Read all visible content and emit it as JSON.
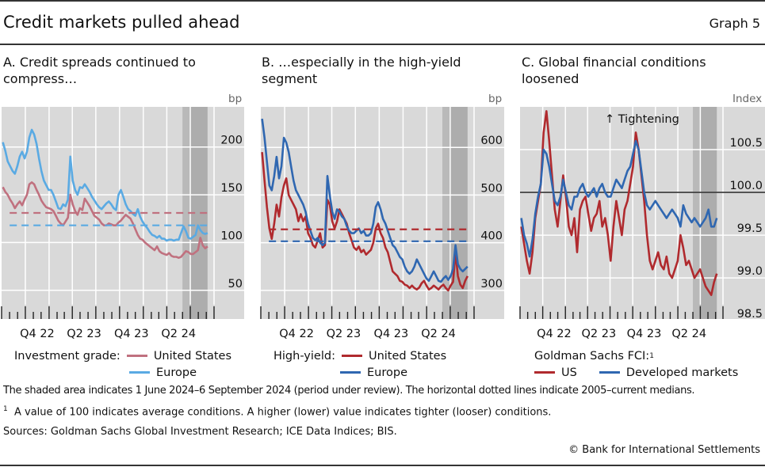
{
  "header": {
    "title": "Credit markets pulled ahead",
    "graph_number": "Graph 5"
  },
  "colors": {
    "ig_us": "#c0717f",
    "ig_europe": "#5aaae3",
    "hy_us": "#b02a2e",
    "hy_europe": "#2f67b1",
    "plot_bg": "#d9d9d9",
    "shade_light": "#c2c2c2",
    "shade_dark": "#adadad",
    "grid": "#ffffff"
  },
  "chart_data": [
    {
      "id": "A",
      "type": "line",
      "title": "A. Credit spreads continued to compress…",
      "ylabel": "bp",
      "ylim": [
        20,
        242
      ],
      "yticks": [
        50,
        100,
        150,
        200
      ],
      "xlim": [
        "2022-07-01",
        "2024-10-31"
      ],
      "xtick_labels": [
        "Q4 22",
        "Q2 23",
        "Q4 23",
        "Q2 24"
      ],
      "shaded_period": [
        "2024-06-01",
        "2024-09-06"
      ],
      "legend_prefix": "Investment grade:",
      "series": [
        {
          "name": "United States",
          "color_key": "ig_us",
          "values": [
            158,
            153,
            150,
            145,
            141,
            136,
            140,
            143,
            139,
            145,
            150,
            161,
            163,
            161,
            155,
            150,
            144,
            140,
            137,
            136,
            135,
            133,
            128,
            123,
            120,
            118,
            122,
            126,
            150,
            140,
            133,
            129,
            136,
            134,
            146,
            142,
            138,
            133,
            128,
            126,
            124,
            120,
            118,
            118,
            120,
            119,
            118,
            118,
            121,
            123,
            126,
            129,
            127,
            125,
            120,
            114,
            108,
            104,
            103,
            100,
            98,
            96,
            94,
            92,
            96,
            91,
            89,
            88,
            87,
            89,
            86,
            85,
            85,
            84,
            85,
            88,
            91,
            90,
            88,
            88,
            90,
            92,
            105,
            97,
            94,
            96
          ]
        },
        {
          "name": "Europe",
          "color_key": "ig_europe",
          "values": [
            205,
            196,
            185,
            180,
            175,
            172,
            180,
            190,
            195,
            188,
            195,
            210,
            218,
            213,
            203,
            188,
            175,
            165,
            160,
            155,
            155,
            150,
            143,
            136,
            135,
            140,
            138,
            145,
            190,
            165,
            155,
            150,
            158,
            157,
            161,
            157,
            153,
            148,
            144,
            140,
            137,
            135,
            138,
            141,
            143,
            140,
            136,
            134,
            150,
            155,
            148,
            140,
            135,
            133,
            130,
            128,
            135,
            127,
            122,
            118,
            115,
            111,
            108,
            107,
            105,
            107,
            104,
            104,
            102,
            103,
            103,
            102,
            103,
            103,
            110,
            117,
            112,
            105,
            104,
            106,
            108,
            118,
            113,
            110,
            109,
            110
          ]
        },
        {
          "name": "US median 2005–current",
          "style": "dashed",
          "color_key": "ig_us",
          "values": [
            131
          ]
        },
        {
          "name": "Europe median 2005–current",
          "style": "dashed",
          "color_key": "ig_europe",
          "values": [
            118
          ]
        }
      ]
    },
    {
      "id": "B",
      "type": "line",
      "title": "B. …especially in the high-yield segment",
      "ylabel": "bp",
      "ylim": [
        240,
        685
      ],
      "yticks": [
        300,
        400,
        500,
        600
      ],
      "xlim": [
        "2022-07-01",
        "2024-10-31"
      ],
      "xtick_labels": [
        "Q4 22",
        "Q2 23",
        "Q4 23",
        "Q2 24"
      ],
      "shaded_period": [
        "2024-06-01",
        "2024-09-06"
      ],
      "legend_prefix": "High-yield:",
      "series": [
        {
          "name": "United States",
          "color_key": "hy_us",
          "values": [
            590,
            530,
            475,
            430,
            408,
            440,
            480,
            455,
            495,
            520,
            535,
            500,
            490,
            480,
            470,
            445,
            460,
            445,
            455,
            420,
            410,
            395,
            390,
            405,
            420,
            390,
            395,
            490,
            480,
            445,
            430,
            445,
            470,
            460,
            450,
            440,
            420,
            405,
            390,
            385,
            392,
            380,
            385,
            375,
            380,
            385,
            400,
            430,
            440,
            420,
            410,
            390,
            380,
            360,
            340,
            335,
            330,
            320,
            318,
            312,
            310,
            305,
            310,
            305,
            302,
            306,
            315,
            320,
            310,
            302,
            305,
            310,
            306,
            302,
            308,
            312,
            305,
            300,
            310,
            318,
            380,
            330,
            312,
            305,
            320,
            330
          ]
        },
        {
          "name": "Europe",
          "color_key": "hy_europe",
          "values": [
            660,
            620,
            570,
            520,
            510,
            540,
            580,
            535,
            560,
            620,
            610,
            590,
            560,
            530,
            510,
            500,
            490,
            480,
            465,
            440,
            425,
            410,
            405,
            410,
            400,
            395,
            400,
            540,
            500,
            465,
            450,
            470,
            465,
            455,
            450,
            435,
            425,
            420,
            420,
            425,
            430,
            420,
            425,
            415,
            415,
            420,
            440,
            475,
            485,
            470,
            450,
            440,
            425,
            410,
            395,
            390,
            380,
            370,
            365,
            350,
            340,
            335,
            340,
            350,
            365,
            355,
            345,
            335,
            325,
            320,
            330,
            340,
            330,
            320,
            318,
            325,
            330,
            322,
            330,
            345,
            395,
            355,
            345,
            340,
            345,
            350
          ]
        },
        {
          "name": "US median 2005–current",
          "style": "dashed",
          "color_key": "hy_us",
          "values": [
            428
          ]
        },
        {
          "name": "Europe median 2005–current",
          "style": "dashed",
          "color_key": "hy_europe",
          "values": [
            403
          ]
        }
      ]
    },
    {
      "id": "C",
      "type": "line",
      "title": "C. Global financial conditions loosened",
      "ylabel": "Index",
      "ylim": [
        98.52,
        101.0
      ],
      "yticks": [
        98.5,
        99.0,
        99.5,
        100.0,
        100.5
      ],
      "reference_line": 100.0,
      "annotation": "↑ Tightening",
      "xlim": [
        "2022-07-01",
        "2024-10-31"
      ],
      "xtick_labels": [
        "Q4 22",
        "Q2 23",
        "Q4 23",
        "Q2 24"
      ],
      "shaded_period": [
        "2024-06-01",
        "2024-09-06"
      ],
      "legend_title": "Goldman Sachs FCI:",
      "legend_title_footnote": "1",
      "series": [
        {
          "name": "US",
          "color_key": "hy_us",
          "values": [
            99.6,
            99.4,
            99.2,
            99.05,
            99.3,
            99.7,
            99.9,
            100.1,
            100.7,
            100.95,
            100.6,
            100.2,
            99.8,
            99.6,
            99.9,
            100.2,
            99.95,
            99.6,
            99.5,
            99.7,
            99.3,
            99.8,
            99.9,
            99.95,
            99.75,
            99.55,
            99.7,
            99.75,
            99.9,
            99.6,
            99.7,
            99.5,
            99.2,
            99.6,
            99.9,
            99.7,
            99.5,
            99.8,
            99.9,
            100.1,
            100.3,
            100.7,
            100.5,
            100.2,
            99.9,
            99.5,
            99.2,
            99.1,
            99.2,
            99.3,
            99.15,
            99.1,
            99.25,
            99.05,
            99.0,
            99.1,
            99.2,
            99.5,
            99.35,
            99.15,
            99.2,
            99.1,
            99.0,
            99.05,
            99.1,
            99.0,
            98.9,
            98.85,
            98.8,
            98.95,
            99.05
          ]
        },
        {
          "name": "Developed markets",
          "color_key": "hy_europe",
          "values": [
            99.7,
            99.5,
            99.4,
            99.25,
            99.45,
            99.75,
            99.95,
            100.1,
            100.5,
            100.45,
            100.3,
            100.1,
            99.9,
            99.85,
            99.95,
            100.15,
            100.0,
            99.85,
            99.8,
            99.95,
            99.95,
            100.05,
            100.1,
            100.0,
            99.95,
            100.0,
            100.05,
            99.95,
            100.05,
            100.1,
            100.0,
            99.95,
            99.95,
            100.05,
            100.15,
            100.1,
            100.05,
            100.15,
            100.25,
            100.3,
            100.45,
            100.6,
            100.5,
            100.25,
            100.0,
            99.85,
            99.8,
            99.85,
            99.9,
            99.85,
            99.8,
            99.75,
            99.7,
            99.75,
            99.8,
            99.75,
            99.7,
            99.6,
            99.85,
            99.75,
            99.7,
            99.65,
            99.7,
            99.65,
            99.6,
            99.65,
            99.7,
            99.8,
            99.6,
            99.6,
            99.7
          ]
        }
      ]
    }
  ],
  "footnotes": {
    "shaded": "The shaded area indicates 1 June 2024–6 September 2024 (period under review). The horizontal dotted lines indicate 2005–current medians.",
    "fn1_marker": "1",
    "fn1": "A value of 100 indicates average conditions. A higher (lower) value indicates tighter (looser) conditions.",
    "sources": "Sources: Goldman Sachs Global Investment Research; ICE Data Indices; BIS.",
    "copyright": "© Bank for International Settlements"
  }
}
